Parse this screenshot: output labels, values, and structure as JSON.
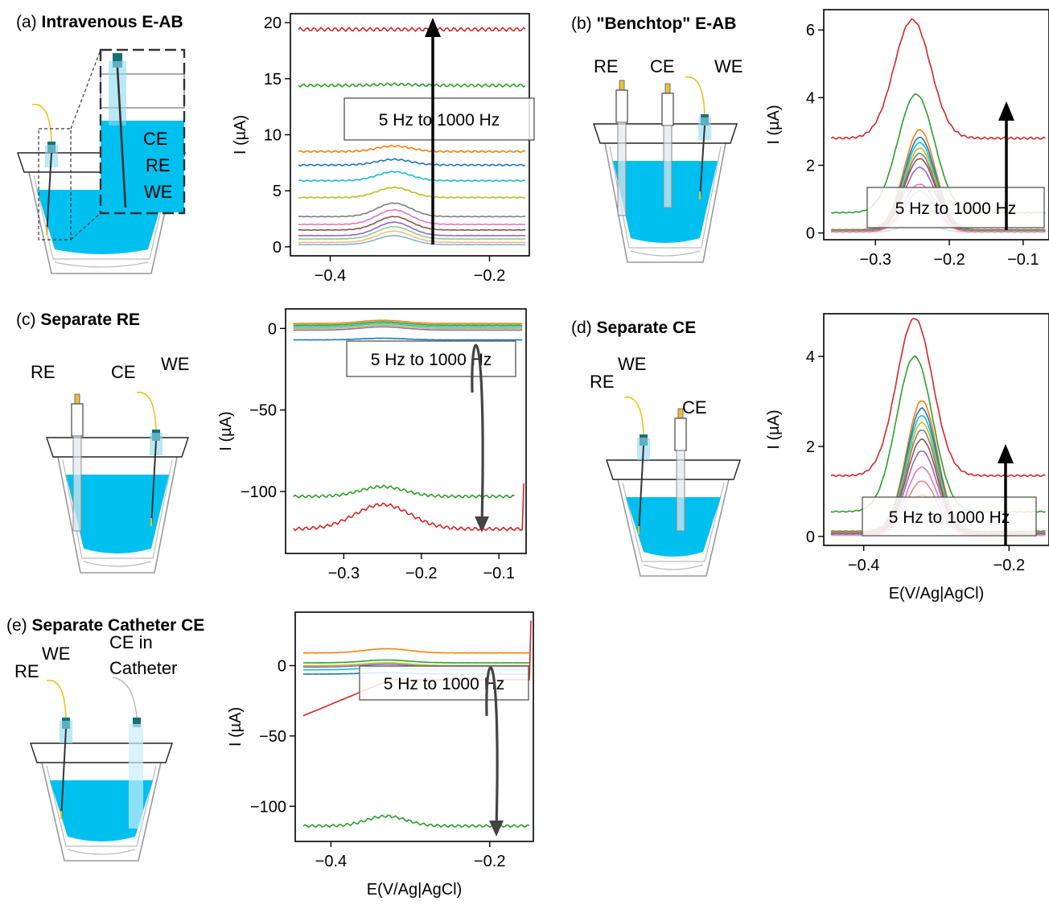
{
  "colors": {
    "solution": "#00c0f0",
    "wire_gold": "#f0c020",
    "electrode_head": "#1a6f7a",
    "series": [
      "#1f77b4",
      "#ff7f0e",
      "#2ca02c",
      "#d62728",
      "#9467bd",
      "#8c564b",
      "#e377c2",
      "#7f7f7f",
      "#bcbd22",
      "#17becf"
    ]
  },
  "panels": [
    {
      "id": "a",
      "label": "(a)",
      "title": "Intravenous E-AB",
      "electrode_labels": [
        "CE",
        "RE",
        "WE"
      ],
      "annotation": "5 Hz to 1000 Hz",
      "arrow": "up",
      "xlabel": "",
      "ylabel": "I (µA)",
      "xticks": [
        -0.4,
        -0.2
      ],
      "xtick_labels": [
        "−0.4",
        "−0.2"
      ],
      "yticks": [
        0,
        5,
        10,
        15,
        20
      ],
      "ytick_labels": [
        "0",
        "5",
        "10",
        "15",
        "20"
      ]
    },
    {
      "id": "b",
      "label": "(b)",
      "title": "\"Benchtop\" E-AB",
      "electrode_labels": [
        "RE",
        "CE",
        "WE"
      ],
      "annotation": "5 Hz to 1000 Hz",
      "arrow": "up",
      "xlabel": "",
      "ylabel": "I (µA)",
      "xticks": [
        -0.3,
        -0.2,
        -0.1
      ],
      "xtick_labels": [
        "−0.3",
        "−0.2",
        "−0.1"
      ],
      "yticks": [
        0,
        2,
        4,
        6
      ],
      "ytick_labels": [
        "0",
        "2",
        "4",
        "6"
      ]
    },
    {
      "id": "c",
      "label": "(c)",
      "title": "Separate RE",
      "electrode_labels": [
        "RE",
        "CE",
        "WE"
      ],
      "annotation": "5 Hz to 1000 Hz",
      "arrow": "down",
      "xlabel": "",
      "ylabel": "I (µA)",
      "xticks": [
        -0.3,
        -0.2,
        -0.1
      ],
      "xtick_labels": [
        "−0.3",
        "−0.2",
        "−0.1"
      ],
      "yticks": [
        0,
        -50,
        -100
      ],
      "ytick_labels": [
        "0",
        "−50",
        "−100"
      ]
    },
    {
      "id": "d",
      "label": "(d)",
      "title": "Separate CE",
      "electrode_labels": [
        "RE",
        "WE",
        "CE"
      ],
      "annotation": "5 Hz to 1000 Hz",
      "arrow": "up",
      "xlabel": "E(V/Ag|AgCl)",
      "ylabel": "I (µA)",
      "xticks": [
        -0.4,
        -0.2
      ],
      "xtick_labels": [
        "−0.4",
        "−0.2"
      ],
      "yticks": [
        0,
        2,
        4
      ],
      "ytick_labels": [
        "0",
        "2",
        "4"
      ]
    },
    {
      "id": "e",
      "label": "(e)",
      "title": "Separate Catheter CE",
      "electrode_labels": [
        "RE",
        "WE",
        "CE in",
        "Catheter"
      ],
      "annotation": "5 Hz to 1000 Hz",
      "arrow": "down",
      "xlabel": "E(V/Ag|AgCl)",
      "ylabel": "I (µA)",
      "xticks": [
        -0.4,
        -0.2
      ],
      "xtick_labels": [
        "−0.4",
        "−0.2"
      ],
      "yticks": [
        0,
        -50,
        -100
      ],
      "ytick_labels": [
        "0",
        "−50",
        "−100"
      ]
    }
  ],
  "chart_data": [
    {
      "panel": "a",
      "type": "line",
      "xlim": [
        -0.45,
        -0.15
      ],
      "ylim": [
        -0.8,
        20.8
      ],
      "series": [
        {
          "color": "#d62728",
          "baseline": 19.4,
          "peak": 0,
          "center": -0.32,
          "width": 0.03
        },
        {
          "color": "#2ca02c",
          "baseline": 14.4,
          "peak": 0.1,
          "center": -0.32,
          "width": 0.03
        },
        {
          "color": "#ff7f0e",
          "baseline": 8.5,
          "peak": 0.5,
          "center": -0.32,
          "width": 0.03
        },
        {
          "color": "#1f77b4",
          "baseline": 7.3,
          "peak": 0.5,
          "center": -0.32,
          "width": 0.03
        },
        {
          "color": "#17becf",
          "baseline": 5.9,
          "peak": 0.8,
          "center": -0.32,
          "width": 0.03
        },
        {
          "color": "#bcbd22",
          "baseline": 4.4,
          "peak": 0.9,
          "center": -0.32,
          "width": 0.03
        },
        {
          "color": "#7f7f7f",
          "baseline": 2.7,
          "peak": 1.2,
          "center": -0.32,
          "width": 0.03
        },
        {
          "color": "#e377c2",
          "baseline": 2.0,
          "peak": 1.3,
          "center": -0.32,
          "width": 0.03
        },
        {
          "color": "#8c564b",
          "baseline": 1.5,
          "peak": 1.2,
          "center": -0.32,
          "width": 0.03
        },
        {
          "color": "#9467bd",
          "baseline": 1.0,
          "peak": 1.2,
          "center": -0.32,
          "width": 0.03
        },
        {
          "color": "#2ca02c",
          "baseline": 0.7,
          "peak": 1.1,
          "center": -0.32,
          "width": 0.03
        },
        {
          "color": "#ff7f0e",
          "baseline": 0.4,
          "peak": 1.0,
          "center": -0.32,
          "width": 0.03
        },
        {
          "color": "#1f77b4",
          "baseline": 0.2,
          "peak": 0.8,
          "center": -0.32,
          "width": 0.03
        }
      ]
    },
    {
      "panel": "b",
      "type": "line",
      "xlim": [
        -0.37,
        -0.065
      ],
      "ylim": [
        -0.2,
        6.6
      ],
      "series": [
        {
          "color": "#d62728",
          "baseline": 2.8,
          "peak": 3.5,
          "center": -0.25,
          "width": 0.035
        },
        {
          "color": "#2ca02c",
          "baseline": 0.6,
          "peak": 3.5,
          "center": -0.245,
          "width": 0.035
        },
        {
          "color": "#ff7f0e",
          "baseline": 0.1,
          "peak": 2.95,
          "center": -0.24,
          "width": 0.03
        },
        {
          "color": "#1f77b4",
          "baseline": 0.08,
          "peak": 2.75,
          "center": -0.24,
          "width": 0.03
        },
        {
          "color": "#17becf",
          "baseline": 0.07,
          "peak": 2.6,
          "center": -0.24,
          "width": 0.03
        },
        {
          "color": "#bcbd22",
          "baseline": 0.06,
          "peak": 2.45,
          "center": -0.24,
          "width": 0.03
        },
        {
          "color": "#7f7f7f",
          "baseline": 0.05,
          "peak": 2.3,
          "center": -0.24,
          "width": 0.03
        },
        {
          "color": "#8c564b",
          "baseline": 0.05,
          "peak": 2.15,
          "center": -0.24,
          "width": 0.03
        },
        {
          "color": "#9467bd",
          "baseline": 0.04,
          "peak": 1.9,
          "center": -0.24,
          "width": 0.03
        },
        {
          "color": "#e377c2",
          "baseline": 0.04,
          "peak": 1.4,
          "center": -0.24,
          "width": 0.03
        },
        {
          "color": "#d62728",
          "baseline": 0.03,
          "peak": 1.2,
          "center": -0.24,
          "width": 0.03
        },
        {
          "color": "#ffbb78",
          "baseline": 0.03,
          "peak": 0.9,
          "center": -0.24,
          "width": 0.03
        },
        {
          "color": "#aec7e8",
          "baseline": 0.02,
          "peak": 0.3,
          "center": -0.24,
          "width": 0.03
        }
      ]
    },
    {
      "panel": "c",
      "type": "line",
      "xlim": [
        -0.375,
        -0.065
      ],
      "ylim": [
        -138,
        12
      ],
      "series": [
        {
          "color": "#ff7f0e",
          "baseline": 3,
          "peak": 2,
          "center": -0.25,
          "width": 0.04
        },
        {
          "color": "#2ca02c",
          "baseline": 2,
          "peak": 2,
          "center": -0.25,
          "width": 0.04
        },
        {
          "color": "#17becf",
          "baseline": 1,
          "peak": 2,
          "center": -0.25,
          "width": 0.04
        },
        {
          "color": "#bcbd22",
          "baseline": 0,
          "peak": 2,
          "center": -0.25,
          "width": 0.04
        },
        {
          "color": "#9467bd",
          "baseline": -1,
          "peak": 2,
          "center": -0.25,
          "width": 0.04
        },
        {
          "color": "#1f77b4",
          "baseline": -7,
          "peak": 1,
          "center": -0.25,
          "width": 0.04
        },
        {
          "color": "#2ca02c",
          "baseline": -103,
          "peak": 6,
          "center": -0.25,
          "width": 0.04,
          "x_end": -0.08
        },
        {
          "color": "#d62728",
          "baseline": -123,
          "peak": 15,
          "center": -0.25,
          "width": 0.05,
          "tail_to": -95
        }
      ]
    },
    {
      "panel": "d",
      "type": "line",
      "xlim": [
        -0.455,
        -0.145
      ],
      "ylim": [
        -0.2,
        4.95
      ],
      "series": [
        {
          "color": "#d62728",
          "baseline": 1.35,
          "peak": 3.5,
          "center": -0.33,
          "width": 0.035
        },
        {
          "color": "#2ca02c",
          "baseline": 0.55,
          "peak": 3.45,
          "center": -0.33,
          "width": 0.035
        },
        {
          "color": "#ff7f0e",
          "baseline": 0.12,
          "peak": 2.9,
          "center": -0.32,
          "width": 0.03
        },
        {
          "color": "#1f77b4",
          "baseline": 0.1,
          "peak": 2.75,
          "center": -0.32,
          "width": 0.03
        },
        {
          "color": "#17becf",
          "baseline": 0.09,
          "peak": 2.6,
          "center": -0.32,
          "width": 0.03
        },
        {
          "color": "#bcbd22",
          "baseline": 0.08,
          "peak": 2.45,
          "center": -0.32,
          "width": 0.03
        },
        {
          "color": "#7f7f7f",
          "baseline": 0.07,
          "peak": 2.3,
          "center": -0.32,
          "width": 0.03
        },
        {
          "color": "#8c564b",
          "baseline": 0.06,
          "peak": 2.1,
          "center": -0.32,
          "width": 0.03
        },
        {
          "color": "#9467bd",
          "baseline": 0.05,
          "peak": 1.85,
          "center": -0.32,
          "width": 0.03
        },
        {
          "color": "#e377c2",
          "baseline": 0.04,
          "peak": 1.5,
          "center": -0.32,
          "width": 0.03
        },
        {
          "color": "#d62728",
          "baseline": 0.03,
          "peak": 1.2,
          "center": -0.32,
          "width": 0.03
        },
        {
          "color": "#ffbb78",
          "baseline": 0.02,
          "peak": 0.9,
          "center": -0.32,
          "width": 0.03
        },
        {
          "color": "#aec7e8",
          "baseline": 0.02,
          "peak": 0.35,
          "center": -0.32,
          "width": 0.03
        }
      ]
    },
    {
      "panel": "e",
      "type": "line",
      "xlim": [
        -0.445,
        -0.145
      ],
      "ylim": [
        -125,
        38
      ],
      "series": [
        {
          "color": "#ff7f0e",
          "baseline": 9,
          "peak": 3,
          "center": -0.33,
          "width": 0.04
        },
        {
          "color": "#2ca02c",
          "baseline": 2,
          "peak": 2,
          "center": -0.33,
          "width": 0.04
        },
        {
          "color": "#bcbd22",
          "baseline": 0,
          "peak": 2,
          "center": -0.33,
          "width": 0.04
        },
        {
          "color": "#9467bd",
          "baseline": -1,
          "peak": 2,
          "center": -0.33,
          "width": 0.04
        },
        {
          "color": "#17becf",
          "baseline": -3,
          "peak": 2,
          "center": -0.33,
          "width": 0.04
        },
        {
          "color": "#1f77b4",
          "baseline": -6,
          "peak": 1,
          "center": -0.33,
          "width": 0.04
        },
        {
          "color": "#2ca02c",
          "baseline": -114,
          "peak": 7,
          "center": -0.33,
          "width": 0.035
        },
        {
          "color": "#d62728",
          "baseline": -10,
          "peak": 0,
          "center": -0.33,
          "width": 0.04,
          "ramp_from": -38,
          "tail_to": 32
        }
      ]
    }
  ]
}
